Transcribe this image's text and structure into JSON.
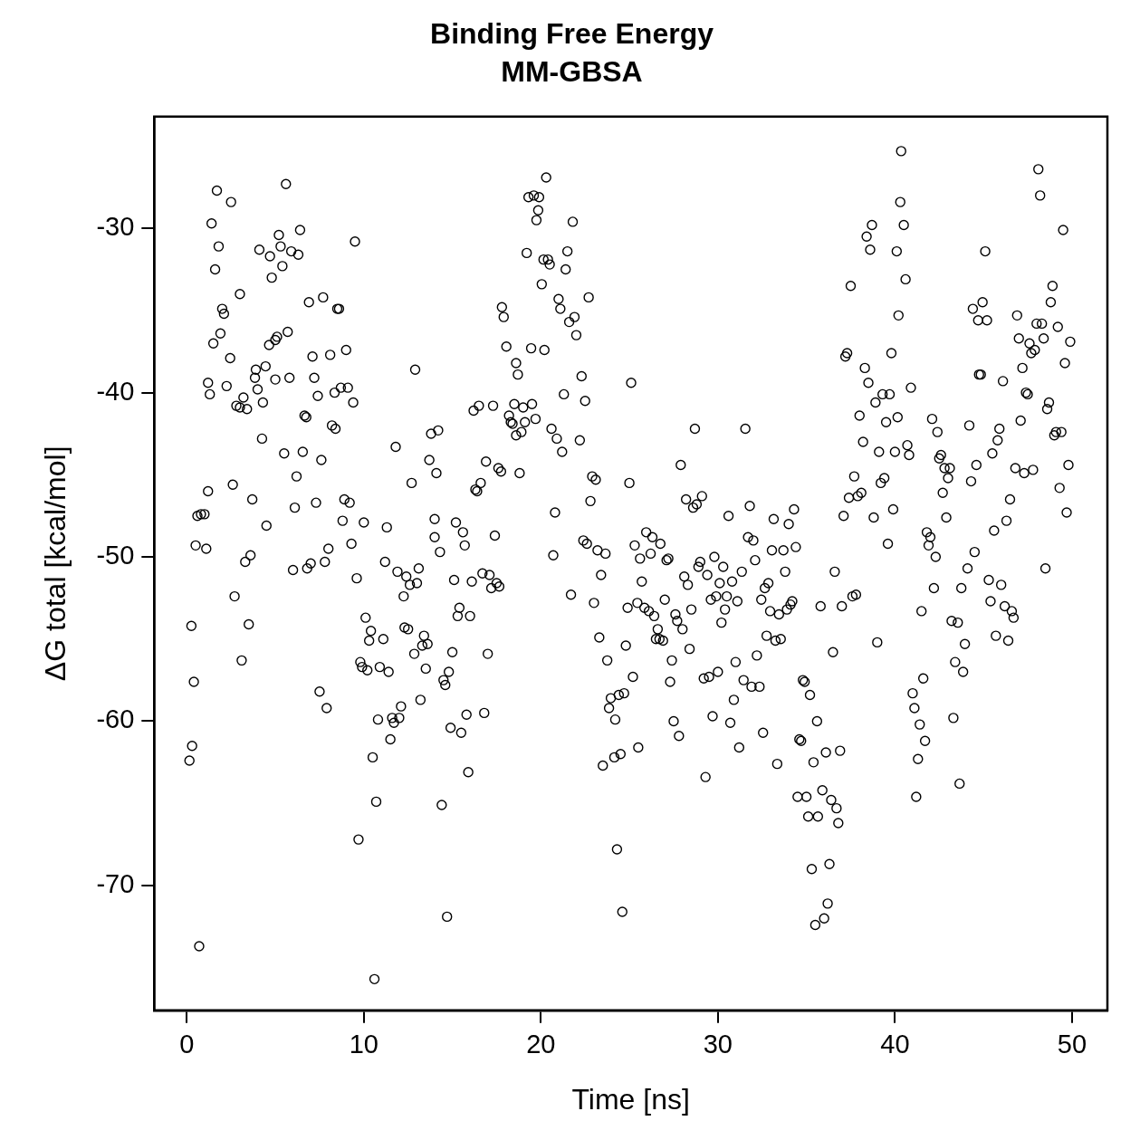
{
  "chart_data": {
    "type": "scatter",
    "title": "Binding Free Energy",
    "subtitle": "MM-GBSA",
    "xlabel": "Time [ns]",
    "ylabel": "ΔG total [kcal/mol]",
    "xlim": [
      -1.84,
      52.0
    ],
    "ylim": [
      -77.6,
      -23.2
    ],
    "xticks": [
      0,
      10,
      20,
      30,
      40,
      50
    ],
    "yticks": [
      -70,
      -60,
      -50,
      -40,
      -30
    ],
    "grid": false,
    "legend": false,
    "marker": "circle",
    "series": [
      {
        "color": "#000000",
        "x": [
          0.15,
          0.26,
          0.3,
          0.4,
          0.5,
          0.6,
          0.7,
          0.8,
          1.0,
          1.1,
          1.2,
          1.2,
          1.3,
          1.4,
          1.5,
          1.6,
          1.7,
          1.8,
          1.9,
          2.0,
          2.1,
          2.25,
          2.45,
          2.5,
          2.6,
          2.7,
          2.8,
          3.0,
          3.1,
          3.2,
          3.0,
          3.3,
          3.4,
          3.5,
          3.6,
          3.7,
          3.85,
          3.9,
          4.0,
          4.1,
          4.25,
          4.3,
          4.45,
          4.5,
          4.65,
          4.7,
          4.8,
          5.0,
          5.0,
          5.1,
          5.2,
          5.3,
          5.4,
          5.5,
          5.6,
          5.7,
          5.8,
          5.9,
          6.0,
          6.1,
          6.2,
          6.3,
          6.4,
          6.55,
          6.65,
          6.75,
          6.8,
          6.9,
          7.0,
          7.1,
          7.2,
          7.3,
          7.4,
          7.5,
          7.6,
          7.7,
          7.8,
          7.9,
          8.0,
          8.1,
          8.2,
          8.35,
          8.4,
          8.5,
          8.6,
          8.7,
          8.8,
          8.9,
          9.0,
          9.1,
          9.2,
          9.3,
          9.4,
          9.5,
          9.6,
          9.7,
          9.8,
          9.9,
          10.0,
          10.1,
          10.2,
          10.3,
          10.4,
          10.5,
          10.6,
          10.7,
          10.8,
          10.9,
          11.1,
          11.2,
          11.3,
          11.4,
          11.5,
          11.6,
          11.7,
          11.8,
          11.9,
          12.0,
          12.1,
          12.25,
          12.3,
          12.4,
          12.5,
          12.6,
          12.7,
          12.85,
          12.9,
          13.0,
          13.1,
          13.2,
          13.3,
          13.4,
          13.5,
          13.6,
          13.7,
          13.8,
          14.0,
          14.0,
          14.1,
          14.2,
          14.3,
          14.4,
          14.5,
          14.6,
          14.7,
          14.8,
          14.9,
          15.0,
          15.1,
          15.2,
          15.3,
          15.4,
          15.5,
          15.6,
          15.7,
          15.8,
          15.9,
          16.0,
          16.1,
          16.2,
          16.3,
          16.4,
          16.5,
          16.6,
          16.7,
          16.8,
          16.9,
          17.0,
          17.1,
          17.2,
          17.3,
          17.4,
          17.5,
          17.6,
          17.65,
          17.75,
          17.8,
          17.9,
          18.05,
          18.2,
          18.3,
          18.4,
          18.5,
          18.6,
          18.6,
          18.7,
          18.8,
          18.9,
          19.0,
          19.1,
          19.2,
          19.3,
          19.45,
          19.5,
          19.6,
          19.7,
          19.75,
          19.85,
          19.9,
          20.05,
          20.15,
          20.2,
          20.3,
          20.4,
          20.5,
          20.6,
          20.7,
          20.8,
          20.9,
          21.0,
          21.1,
          21.2,
          21.3,
          21.4,
          21.5,
          21.6,
          21.7,
          21.8,
          21.9,
          22.0,
          22.2,
          22.3,
          22.4,
          22.5,
          22.6,
          22.7,
          22.8,
          22.9,
          23.0,
          23.1,
          23.2,
          23.3,
          23.4,
          23.5,
          23.65,
          23.75,
          23.85,
          23.95,
          24.15,
          24.2,
          24.3,
          24.4,
          24.5,
          24.6,
          24.7,
          24.8,
          24.9,
          25.0,
          25.1,
          25.2,
          25.3,
          25.45,
          25.5,
          25.6,
          25.7,
          25.85,
          25.95,
          26.1,
          26.2,
          26.3,
          26.4,
          26.5,
          26.6,
          26.7,
          26.75,
          26.9,
          27.0,
          27.1,
          27.2,
          27.3,
          27.4,
          27.5,
          27.6,
          27.7,
          27.8,
          27.9,
          28.0,
          28.1,
          28.2,
          28.3,
          28.4,
          28.5,
          28.6,
          28.7,
          28.8,
          28.9,
          29.0,
          29.1,
          29.2,
          29.3,
          29.4,
          29.5,
          29.6,
          29.7,
          29.8,
          29.9,
          30.0,
          30.1,
          30.2,
          30.3,
          30.4,
          30.5,
          30.6,
          30.7,
          30.8,
          30.9,
          31.0,
          31.1,
          31.2,
          31.35,
          31.45,
          31.55,
          31.7,
          31.8,
          31.9,
          32.0,
          32.1,
          32.2,
          32.35,
          32.45,
          32.55,
          32.65,
          32.75,
          32.85,
          32.95,
          33.05,
          33.15,
          33.25,
          33.35,
          33.45,
          33.55,
          33.7,
          33.8,
          33.9,
          34.0,
          34.1,
          34.2,
          34.3,
          34.4,
          34.5,
          34.6,
          34.7,
          34.8,
          34.9,
          35.0,
          35.1,
          35.2,
          35.3,
          35.4,
          35.5,
          35.6,
          35.65,
          35.8,
          35.9,
          36.0,
          36.1,
          36.2,
          36.3,
          36.4,
          36.5,
          36.6,
          36.7,
          36.8,
          36.9,
          37.0,
          37.1,
          37.2,
          37.3,
          37.4,
          37.5,
          37.6,
          37.7,
          37.8,
          37.9,
          38.0,
          38.1,
          38.2,
          38.3,
          38.4,
          38.5,
          38.6,
          38.7,
          38.8,
          38.9,
          39.0,
          39.1,
          39.2,
          39.3,
          39.4,
          39.5,
          39.6,
          39.7,
          39.8,
          39.9,
          40.0,
          40.1,
          40.15,
          40.2,
          40.3,
          40.35,
          40.5,
          40.6,
          40.7,
          40.8,
          40.9,
          41.0,
          41.1,
          41.2,
          41.3,
          41.4,
          41.5,
          41.6,
          41.7,
          41.8,
          41.9,
          42.0,
          42.1,
          42.2,
          42.3,
          42.4,
          42.5,
          42.6,
          42.7,
          42.8,
          42.9,
          43.0,
          43.1,
          43.2,
          43.3,
          43.4,
          43.55,
          43.65,
          43.75,
          43.85,
          43.95,
          44.1,
          44.2,
          44.3,
          44.4,
          44.5,
          44.6,
          44.7,
          44.75,
          44.85,
          44.95,
          45.1,
          45.2,
          45.3,
          45.4,
          45.5,
          45.6,
          45.7,
          45.8,
          45.9,
          46.0,
          46.1,
          46.2,
          46.3,
          46.4,
          46.5,
          46.6,
          46.7,
          46.8,
          46.9,
          47.0,
          47.1,
          47.2,
          47.3,
          47.4,
          47.5,
          47.6,
          47.7,
          47.8,
          47.9,
          48.0,
          48.1,
          48.2,
          48.3,
          48.4,
          48.5,
          48.6,
          48.7,
          48.8,
          48.9,
          49.0,
          49.1,
          49.2,
          49.3,
          49.4,
          49.5,
          49.6,
          49.7,
          49.8,
          49.9
        ],
        "values": [
          -62.4,
          -54.2,
          -61.5,
          -57.6,
          -49.3,
          -47.5,
          -73.7,
          -47.4,
          -47.4,
          -49.5,
          -46.0,
          -39.4,
          -40.1,
          -29.7,
          -37.0,
          -32.5,
          -27.7,
          -31.1,
          -36.4,
          -34.9,
          -35.2,
          -39.6,
          -37.9,
          -28.4,
          -45.6,
          -52.4,
          -40.8,
          -40.9,
          -56.3,
          -40.3,
          -34.0,
          -50.3,
          -41.0,
          -54.1,
          -49.9,
          -46.5,
          -39.1,
          -38.6,
          -39.8,
          -31.3,
          -42.8,
          -40.6,
          -38.4,
          -48.1,
          -37.1,
          -31.7,
          -33.0,
          -36.8,
          -39.2,
          -36.6,
          -30.4,
          -31.1,
          -32.3,
          -43.7,
          -27.3,
          -36.3,
          -39.1,
          -31.4,
          -50.8,
          -47.0,
          -45.1,
          -31.6,
          -30.1,
          -43.6,
          -41.4,
          -41.5,
          -50.7,
          -34.5,
          -50.4,
          -37.8,
          -39.1,
          -46.7,
          -40.2,
          -58.2,
          -44.1,
          -34.2,
          -50.3,
          -59.2,
          -49.5,
          -37.7,
          -42.0,
          -40.0,
          -42.2,
          -34.9,
          -34.9,
          -39.7,
          -47.8,
          -46.5,
          -37.4,
          -39.7,
          -46.7,
          -49.2,
          -40.6,
          -30.8,
          -51.3,
          -67.2,
          -56.4,
          -56.7,
          -47.9,
          -53.7,
          -56.9,
          -55.1,
          -54.5,
          -62.2,
          -75.7,
          -64.9,
          -59.9,
          -56.7,
          -55.0,
          -50.3,
          -48.2,
          -57.0,
          -61.1,
          -59.8,
          -60.1,
          -43.3,
          -50.9,
          -59.8,
          -59.1,
          -52.4,
          -54.3,
          -51.2,
          -54.4,
          -51.7,
          -45.5,
          -55.9,
          -38.6,
          -51.6,
          -50.7,
          -58.7,
          -55.4,
          -54.8,
          -56.8,
          -55.3,
          -44.1,
          -42.5,
          -48.8,
          -47.7,
          -44.9,
          -42.3,
          -49.7,
          -65.1,
          -57.5,
          -57.8,
          -71.9,
          -57.0,
          -60.4,
          -55.8,
          -51.4,
          -47.9,
          -53.6,
          -53.1,
          -60.7,
          -48.5,
          -49.3,
          -59.6,
          -63.1,
          -53.6,
          -51.5,
          -41.1,
          -45.9,
          -46.0,
          -40.8,
          -45.5,
          -51.0,
          -59.5,
          -44.2,
          -55.9,
          -51.1,
          -51.9,
          -40.8,
          -48.7,
          -51.6,
          -44.6,
          -51.8,
          -44.8,
          -34.8,
          -35.4,
          -37.2,
          -41.4,
          -41.8,
          -41.9,
          -40.7,
          -42.6,
          -38.2,
          -38.9,
          -44.9,
          -42.4,
          -40.9,
          -41.8,
          -31.5,
          -28.1,
          -37.3,
          -40.7,
          -28.0,
          -41.6,
          -29.5,
          -28.9,
          -28.1,
          -33.4,
          -31.9,
          -37.4,
          -26.9,
          -31.9,
          -32.2,
          -42.2,
          -49.9,
          -47.3,
          -42.8,
          -34.3,
          -34.9,
          -43.6,
          -40.1,
          -32.5,
          -31.4,
          -35.7,
          -52.3,
          -29.6,
          -35.4,
          -36.5,
          -42.9,
          -39.0,
          -49.0,
          -40.5,
          -49.2,
          -34.2,
          -46.6,
          -45.1,
          -52.8,
          -45.3,
          -49.6,
          -54.9,
          -51.1,
          -62.7,
          -49.8,
          -56.3,
          -59.2,
          -58.6,
          -62.2,
          -59.9,
          -67.8,
          -58.4,
          -62.0,
          -71.6,
          -58.3,
          -55.4,
          -53.1,
          -45.5,
          -39.4,
          -57.3,
          -49.3,
          -52.8,
          -61.6,
          -50.1,
          -51.5,
          -53.1,
          -48.5,
          -53.3,
          -49.8,
          -48.8,
          -53.6,
          -55.0,
          -54.4,
          -55.0,
          -49.2,
          -55.1,
          -52.6,
          -50.2,
          -50.1,
          -57.6,
          -56.3,
          -60.0,
          -53.5,
          -53.9,
          -60.9,
          -44.4,
          -54.4,
          -51.2,
          -46.5,
          -51.7,
          -55.6,
          -53.2,
          -47.0,
          -42.2,
          -46.8,
          -50.6,
          -50.3,
          -46.3,
          -57.4,
          -63.4,
          -51.1,
          -57.3,
          -52.6,
          -59.7,
          -50.0,
          -52.4,
          -57.0,
          -51.6,
          -54.0,
          -50.6,
          -53.2,
          -52.4,
          -47.5,
          -60.1,
          -51.5,
          -58.7,
          -56.4,
          -52.7,
          -61.6,
          -50.9,
          -57.5,
          -42.2,
          -48.8,
          -46.9,
          -57.9,
          -49.0,
          -50.2,
          -56.0,
          -57.9,
          -52.6,
          -60.7,
          -51.9,
          -54.8,
          -51.6,
          -53.3,
          -49.6,
          -47.7,
          -55.1,
          -62.6,
          -53.5,
          -55.0,
          -49.6,
          -50.9,
          -53.2,
          -48.0,
          -52.9,
          -52.7,
          -47.1,
          -49.4,
          -64.6,
          -61.1,
          -61.2,
          -57.5,
          -57.6,
          -64.6,
          -65.8,
          -58.4,
          -69.0,
          -62.5,
          -72.4,
          -60.0,
          -65.8,
          -53.0,
          -64.2,
          -72.0,
          -61.9,
          -71.1,
          -68.7,
          -64.8,
          -55.8,
          -50.9,
          -65.3,
          -66.2,
          -61.8,
          -53.0,
          -47.5,
          -37.8,
          -37.6,
          -46.4,
          -33.5,
          -52.4,
          -45.1,
          -52.3,
          -46.3,
          -41.4,
          -46.1,
          -43.0,
          -38.5,
          -30.5,
          -39.4,
          -31.3,
          -29.8,
          -47.6,
          -40.6,
          -55.2,
          -43.6,
          -45.5,
          -40.1,
          -45.2,
          -41.8,
          -49.2,
          -40.1,
          -37.6,
          -47.1,
          -43.6,
          -31.4,
          -41.5,
          -35.3,
          -28.4,
          -25.3,
          -29.8,
          -33.1,
          -43.2,
          -43.8,
          -39.7,
          -58.3,
          -59.2,
          -64.6,
          -62.3,
          -60.2,
          -53.3,
          -57.4,
          -61.2,
          -48.5,
          -49.3,
          -48.8,
          -41.6,
          -51.9,
          -50.0,
          -42.4,
          -44.0,
          -43.8,
          -46.1,
          -44.6,
          -47.6,
          -45.2,
          -44.6,
          -53.9,
          -59.8,
          -56.4,
          -54.0,
          -63.8,
          -51.9,
          -57.0,
          -55.3,
          -50.7,
          -42.0,
          -45.4,
          -34.9,
          -49.7,
          -44.4,
          -35.6,
          -38.9,
          -38.9,
          -34.5,
          -31.4,
          -35.6,
          -51.4,
          -52.7,
          -43.7,
          -48.4,
          -54.8,
          -42.9,
          -42.2,
          -51.7,
          -39.3,
          -53.0,
          -47.8,
          -55.1,
          -46.5,
          -53.3,
          -53.7,
          -44.6,
          -35.3,
          -36.7,
          -41.7,
          -38.5,
          -44.9,
          -40.0,
          -40.1,
          -37.0,
          -37.6,
          -44.7,
          -37.4,
          -35.8,
          -26.4,
          -28.0,
          -35.8,
          -36.7,
          -50.7,
          -41.0,
          -40.6,
          -34.5,
          -33.5,
          -42.6,
          -42.4,
          -36.0,
          -45.8,
          -42.4,
          -30.1,
          -38.2,
          -47.3,
          -44.4,
          -36.9
        ]
      }
    ]
  }
}
